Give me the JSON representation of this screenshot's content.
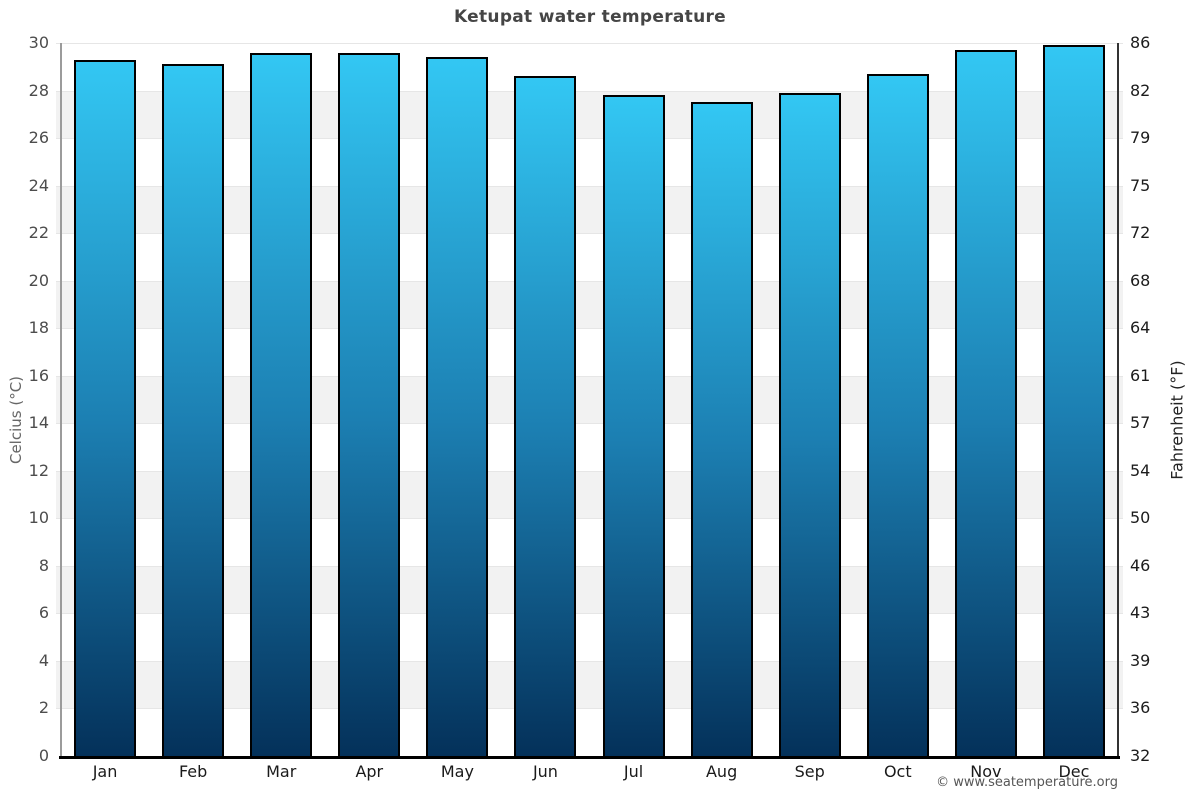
{
  "title": "Ketupat water temperature",
  "footer_credit": "© www.seatemperature.org",
  "axes": {
    "left_title": "Celcius (°C)",
    "right_title": "Fahrenheit (°F)"
  },
  "chart_data": {
    "type": "bar",
    "title": "Ketupat water temperature",
    "categories": [
      "Jan",
      "Feb",
      "Mar",
      "Apr",
      "May",
      "Jun",
      "Jul",
      "Aug",
      "Sep",
      "Oct",
      "Nov",
      "Dec"
    ],
    "values": [
      29.3,
      29.1,
      29.6,
      29.6,
      29.4,
      28.6,
      27.8,
      27.5,
      27.9,
      28.7,
      29.7,
      29.9
    ],
    "unit": "°C",
    "xlabel": "",
    "ylabel_left": "Celcius (°C)",
    "ylabel_right": "Fahrenheit (°F)",
    "ylim": [
      0,
      30
    ],
    "yticks_celsius": [
      30,
      28,
      26,
      24,
      22,
      20,
      18,
      16,
      14,
      12,
      10,
      8,
      6,
      4,
      2,
      0
    ],
    "yticks_fahrenheit": [
      86,
      82,
      79,
      75,
      72,
      68,
      64,
      61,
      57,
      54,
      50,
      46,
      43,
      39,
      36,
      32
    ],
    "grid": "alternating horizontal bands every 2 degrees C",
    "legend_position": "none",
    "colors": {
      "bar_gradient_top": "#33c7f3",
      "bar_gradient_mid": "#1c7fb2",
      "bar_gradient_bottom": "#04315a",
      "bar_border": "#000000",
      "band_gray": "#f2f2f2",
      "band_white": "#ffffff",
      "left_axis_line": "#9b9b9b",
      "right_axis_line": "#333333",
      "x_axis_line": "#000000",
      "title_color": "#454545"
    }
  }
}
